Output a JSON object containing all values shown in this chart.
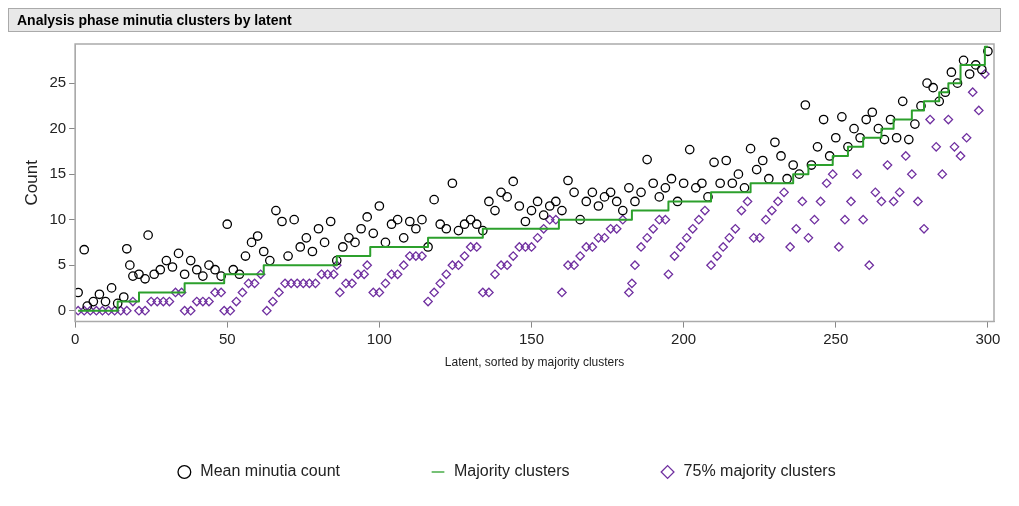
{
  "chart_data": {
    "type": "scatter",
    "title": "Analysis phase minutia clusters by latent",
    "xlabel": "Latent, sorted by majority clusters",
    "ylabel": "Count",
    "xlim": [
      0,
      302
    ],
    "ylim": [
      -1.2,
      29.3
    ],
    "xticks": [
      0,
      50,
      100,
      150,
      200,
      250,
      300
    ],
    "yticks": [
      0,
      5,
      10,
      15,
      20,
      25
    ],
    "grid": false,
    "legend": "bottom",
    "series": [
      {
        "name": "Mean minutia count",
        "type": "scatter",
        "marker": "circle",
        "color": "#000000",
        "x": [
          1,
          3,
          4,
          6,
          8,
          10,
          12,
          14,
          16,
          17,
          18,
          19,
          21,
          23,
          24,
          26,
          28,
          30,
          32,
          34,
          36,
          38,
          40,
          42,
          44,
          46,
          48,
          50,
          52,
          54,
          56,
          58,
          60,
          62,
          64,
          66,
          68,
          70,
          72,
          74,
          76,
          78,
          80,
          82,
          84,
          86,
          88,
          90,
          92,
          94,
          96,
          98,
          100,
          102,
          104,
          106,
          108,
          110,
          112,
          114,
          116,
          118,
          120,
          122,
          124,
          126,
          128,
          130,
          132,
          134,
          136,
          138,
          140,
          142,
          144,
          146,
          148,
          150,
          152,
          154,
          156,
          158,
          160,
          162,
          164,
          166,
          168,
          170,
          172,
          174,
          176,
          178,
          180,
          182,
          184,
          186,
          188,
          190,
          192,
          194,
          196,
          198,
          200,
          202,
          204,
          206,
          208,
          210,
          212,
          214,
          216,
          218,
          220,
          222,
          224,
          226,
          228,
          230,
          232,
          234,
          236,
          238,
          240,
          242,
          244,
          246,
          248,
          250,
          252,
          254,
          256,
          258,
          260,
          262,
          264,
          266,
          268,
          270,
          272,
          274,
          276,
          278,
          280,
          282,
          284,
          286,
          288,
          290,
          292,
          294,
          296,
          298,
          300
        ],
        "values": [
          2,
          6.7,
          0.5,
          1,
          1.8,
          1,
          2.5,
          0.8,
          1.5,
          6.8,
          5,
          3.8,
          4,
          3.5,
          8.3,
          4,
          4.5,
          5.5,
          4.8,
          6.3,
          4,
          5.5,
          4.5,
          3.8,
          5,
          4.5,
          3.8,
          9.5,
          4.5,
          4,
          6,
          7.5,
          8.2,
          6.5,
          5.5,
          11,
          9.8,
          6,
          10,
          7,
          8,
          6.5,
          9,
          7.5,
          9.8,
          5.5,
          7,
          8,
          7.5,
          9,
          10.3,
          8.5,
          11.5,
          7.5,
          9.5,
          10,
          8,
          9.8,
          9,
          10,
          7,
          12.2,
          9.5,
          9,
          14,
          8.8,
          9.5,
          10,
          9.5,
          8.8,
          12,
          11,
          13,
          12.5,
          14.2,
          11.5,
          9.8,
          11,
          12,
          10.5,
          11.5,
          12,
          11,
          14.3,
          13,
          10,
          12,
          13,
          11.5,
          12.5,
          13,
          12,
          11,
          13.5,
          12,
          13,
          16.6,
          14,
          12.5,
          13.5,
          14.5,
          12,
          14,
          17.7,
          13.5,
          14,
          12.5,
          16.3,
          14,
          16.5,
          14,
          15,
          13.5,
          17.8,
          15.5,
          16.5,
          14.5,
          18.5,
          17,
          14.5,
          16,
          15,
          22.6,
          16,
          18,
          21,
          17,
          19,
          21.3,
          18,
          20,
          19,
          21,
          21.8,
          20,
          18.8,
          21,
          19,
          23,
          18.8,
          20.5,
          22.5,
          25,
          24.5,
          23,
          24,
          26.2,
          25,
          27.5,
          26,
          27,
          26.5,
          28.5
        ]
      },
      {
        "name": "Majority clusters",
        "type": "step",
        "marker": "none",
        "line_style": "solid",
        "color": "#2ca02c",
        "x": [
          1,
          14,
          21,
          36,
          49,
          62,
          86,
          97,
          116,
          134,
          159,
          183,
          195,
          209,
          222,
          236,
          241,
          249,
          254,
          259,
          265,
          269,
          275,
          279,
          284,
          287,
          291,
          299,
          300
        ],
        "values": [
          0,
          1,
          2,
          3,
          4,
          5,
          6,
          7,
          8,
          9,
          10,
          11,
          12,
          13,
          14,
          15,
          16,
          17,
          18,
          19,
          20,
          21,
          22,
          23,
          24,
          25,
          27,
          29,
          29
        ]
      },
      {
        "name": "75% majority clusters",
        "type": "scatter",
        "marker": "diamond",
        "color": "#7030a0",
        "x": [
          1,
          3,
          5,
          7,
          9,
          11,
          13,
          15,
          17,
          19,
          21,
          23,
          25,
          27,
          29,
          31,
          33,
          35,
          36,
          38,
          40,
          42,
          44,
          46,
          48,
          49,
          51,
          53,
          55,
          57,
          59,
          61,
          63,
          65,
          67,
          69,
          71,
          73,
          75,
          77,
          79,
          81,
          83,
          85,
          86,
          87,
          89,
          91,
          93,
          95,
          96,
          98,
          100,
          102,
          104,
          106,
          108,
          110,
          112,
          114,
          116,
          118,
          120,
          122,
          124,
          126,
          128,
          130,
          132,
          134,
          136,
          138,
          140,
          142,
          144,
          146,
          148,
          150,
          152,
          154,
          156,
          158,
          160,
          162,
          164,
          166,
          168,
          170,
          172,
          174,
          176,
          178,
          180,
          182,
          183,
          184,
          186,
          188,
          190,
          192,
          194,
          195,
          197,
          199,
          201,
          203,
          205,
          207,
          209,
          211,
          213,
          215,
          217,
          219,
          221,
          223,
          225,
          227,
          229,
          231,
          233,
          235,
          237,
          239,
          241,
          243,
          245,
          247,
          249,
          251,
          253,
          255,
          257,
          259,
          261,
          263,
          265,
          267,
          269,
          271,
          273,
          275,
          277,
          279,
          281,
          283,
          285,
          287,
          289,
          291,
          293,
          295,
          297,
          299
        ],
        "values": [
          0,
          0,
          0,
          0,
          0,
          0,
          0,
          0,
          0,
          1,
          0,
          0,
          1,
          1,
          1,
          1,
          2,
          2,
          0,
          0,
          1,
          1,
          1,
          2,
          2,
          0,
          0,
          1,
          2,
          3,
          3,
          4,
          0,
          1,
          2,
          3,
          3,
          3,
          3,
          3,
          3,
          4,
          4,
          4,
          5,
          2,
          3,
          3,
          4,
          4,
          5,
          2,
          2,
          3,
          4,
          4,
          5,
          6,
          6,
          6,
          1,
          2,
          3,
          4,
          5,
          5,
          6,
          7,
          7,
          2,
          2,
          4,
          5,
          5,
          6,
          7,
          7,
          7,
          8,
          9,
          10,
          10,
          2,
          5,
          5,
          6,
          7,
          7,
          8,
          8,
          9,
          9,
          10,
          2,
          3,
          5,
          7,
          8,
          9,
          10,
          10,
          4,
          6,
          7,
          8,
          9,
          10,
          11,
          5,
          6,
          7,
          8,
          9,
          11,
          12,
          8,
          8,
          10,
          11,
          12,
          13,
          7,
          9,
          12,
          8,
          10,
          12,
          14,
          15,
          7,
          10,
          12,
          15,
          10,
          5,
          13,
          12,
          16,
          12,
          13,
          17,
          15,
          12,
          9,
          21,
          18,
          15,
          21,
          18,
          17,
          19,
          24,
          22,
          26
        ]
      }
    ]
  }
}
